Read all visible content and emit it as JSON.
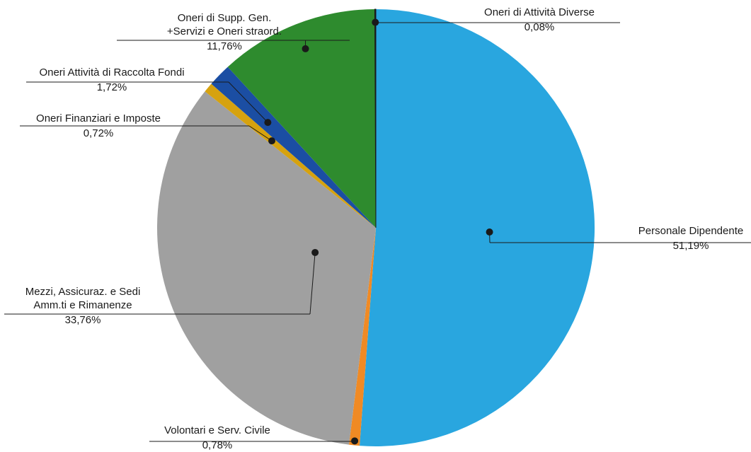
{
  "chart_data": {
    "type": "pie",
    "title": "",
    "slices": [
      {
        "label": "Personale Dipendente",
        "value": 51.19,
        "value_label": "51,19%",
        "color": "#29a6df"
      },
      {
        "label": "Volontari e Serv. Civile",
        "value": 0.78,
        "value_label": "0,78%",
        "color": "#f08a24"
      },
      {
        "label": "Mezzi, Assicuraz. e Sedi Amm.ti e Rimanenze",
        "value": 33.76,
        "value_label": "33,76%",
        "color": "#a0a0a0"
      },
      {
        "label": "Oneri Finanziari e Imposte",
        "value": 0.72,
        "value_label": "0,72%",
        "color": "#d6a20f"
      },
      {
        "label": "Oneri Attività di Raccolta Fondi",
        "value": 1.72,
        "value_label": "1,72%",
        "color": "#1b4ea3"
      },
      {
        "label": "Oneri di Supp. Gen. +Servizi e Oneri straord.",
        "value": 11.76,
        "value_label": "11,76%",
        "color": "#2e8b2e"
      },
      {
        "label": "Oneri di Attività Diverse",
        "value": 0.08,
        "value_label": "0,08%",
        "color": "#1a1a1a"
      }
    ],
    "label_lines": [
      [
        "Personale Dipendente"
      ],
      [
        "Volontari e Serv. Civile"
      ],
      [
        "Mezzi, Assicuraz. e Sedi",
        "Amm.ti e Rimanenze"
      ],
      [
        "Oneri Finanziari e Imposte"
      ],
      [
        "Oneri Attività di Raccolta Fondi"
      ],
      [
        "Oneri di Supp. Gen.",
        "+Servizi e Oneri straord."
      ],
      [
        "Oneri di Attività Diverse"
      ]
    ],
    "start_angle_deg": 0,
    "direction": "clockwise",
    "legend": "none (callout labels)"
  }
}
